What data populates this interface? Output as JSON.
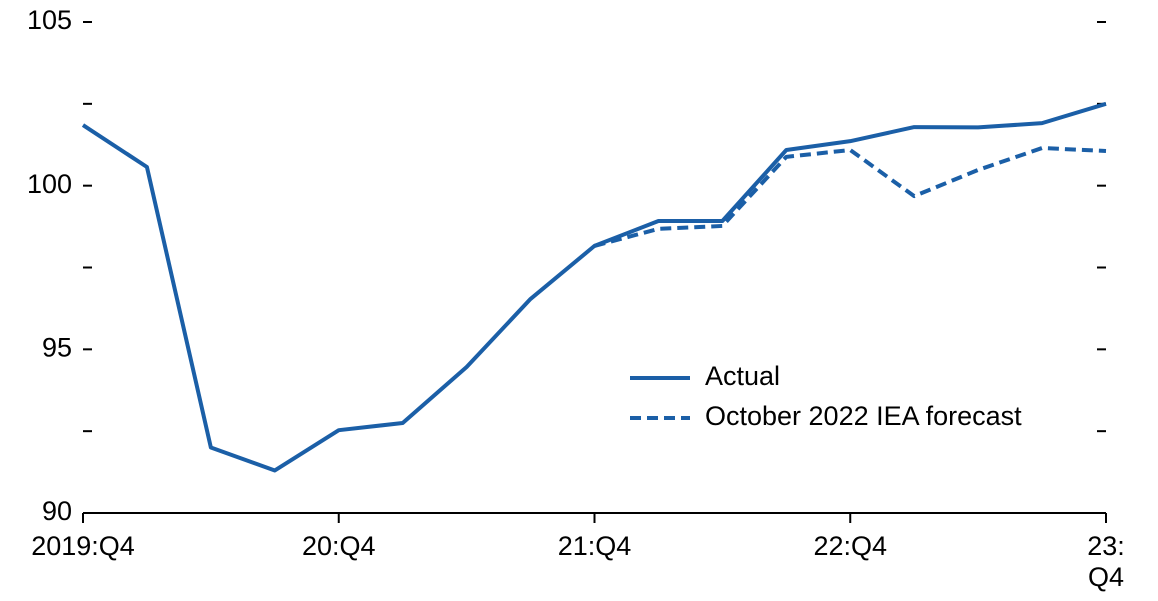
{
  "chart_data": {
    "type": "line",
    "categories": [
      "2019:Q4",
      null,
      null,
      null,
      "20:Q4",
      null,
      null,
      null,
      "21:Q4",
      null,
      null,
      null,
      "22:Q4",
      null,
      null,
      null,
      "23:\nQ4"
    ],
    "series": [
      {
        "name": "Actual",
        "color": "#1b5fa7",
        "dash": false,
        "values": [
          101.85,
          100.57,
          92.0,
          91.3,
          92.53,
          92.75,
          94.46,
          96.54,
          98.16,
          98.92,
          98.92,
          101.09,
          101.36,
          101.79,
          101.78,
          101.91,
          102.5
        ]
      },
      {
        "name": "October 2022 IEA forecast",
        "color": "#1b5fa7",
        "dash": true,
        "values": [
          null,
          null,
          null,
          null,
          null,
          null,
          null,
          null,
          98.16,
          98.68,
          98.77,
          100.88,
          101.09,
          99.68,
          100.48,
          101.15,
          101.06
        ]
      }
    ],
    "ylim": [
      90,
      105
    ],
    "yticks": [
      90,
      95,
      100,
      105
    ],
    "minor_yticks": [
      92.5,
      97.5,
      102.5
    ],
    "right_ticks": true,
    "legend": "lower right"
  }
}
